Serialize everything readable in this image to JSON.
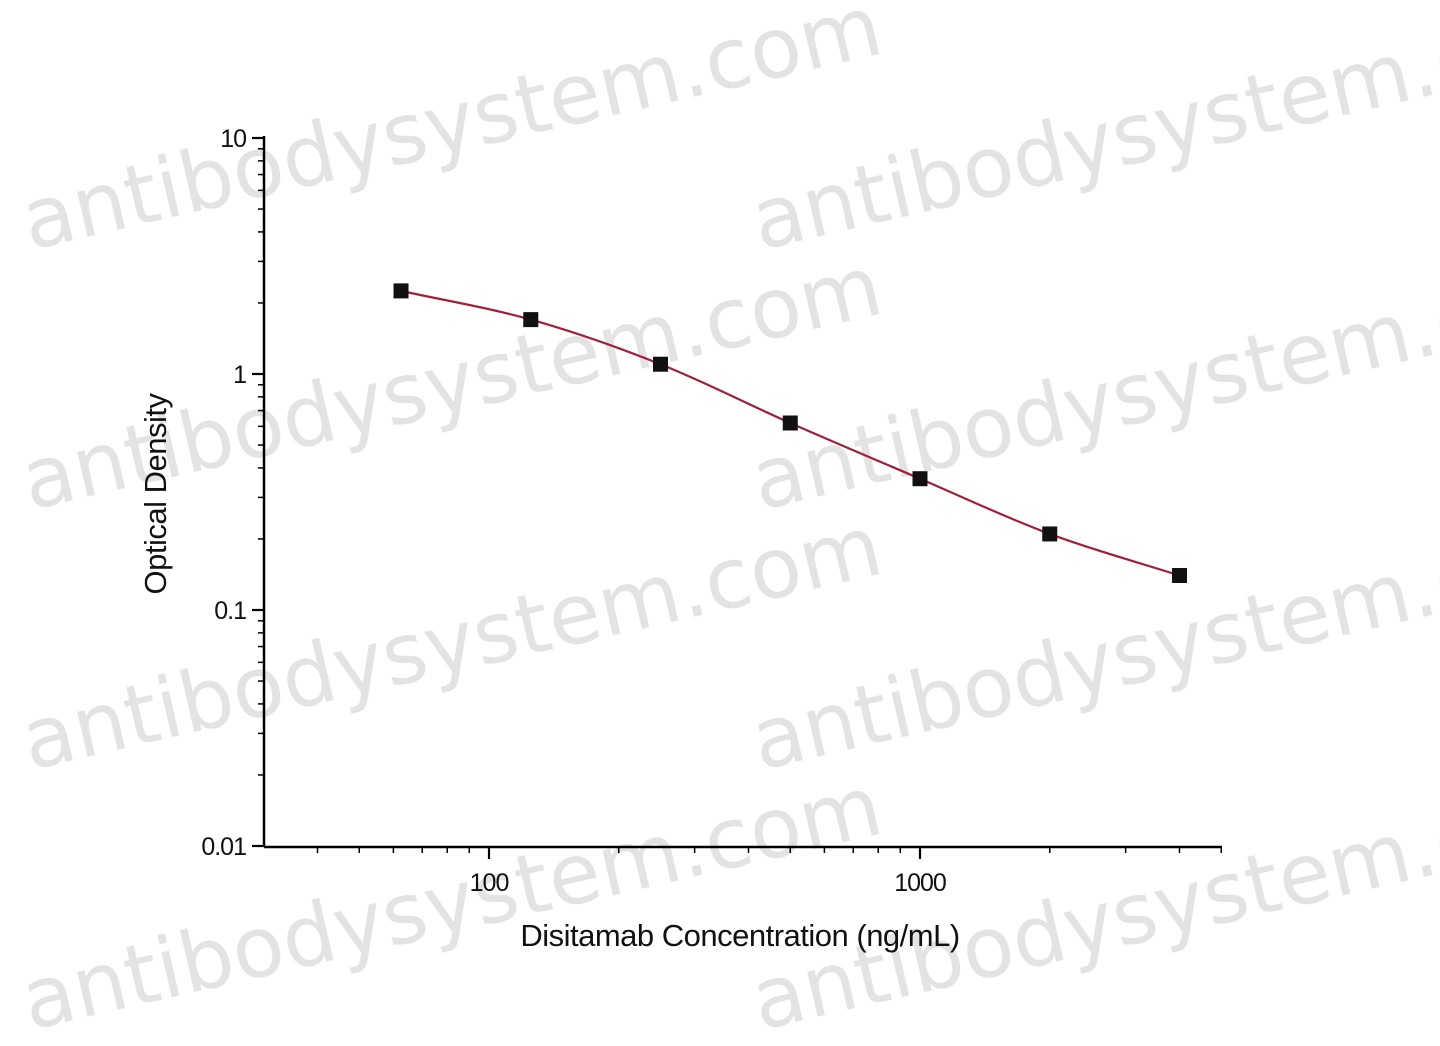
{
  "watermark_text": "antibodysystem.com",
  "colors": {
    "curve": "#a0203a",
    "marker": "#111111",
    "axis": "#000000",
    "watermark": "#9a9a9a"
  },
  "chart_data": {
    "type": "scatter",
    "title": "",
    "xlabel": "Disitamab Concentration (ng/mL)",
    "ylabel": "Optical Density",
    "x_scale": "log",
    "y_scale": "log",
    "xlim": [
      30,
      8000
    ],
    "ylim": [
      0.01,
      10
    ],
    "x_tick_labels": [
      {
        "value": 100,
        "label": "100"
      },
      {
        "value": 1000,
        "label": "1000"
      }
    ],
    "y_tick_labels": [
      {
        "value": 10,
        "label": "10"
      },
      {
        "value": 1,
        "label": "1"
      },
      {
        "value": 0.1,
        "label": "0.1"
      },
      {
        "value": 0.01,
        "label": "0.01"
      }
    ],
    "grid": false,
    "legend": "none",
    "series": [
      {
        "x": [
          62.5,
          125,
          250,
          500,
          1000,
          2000,
          4000
        ],
        "y": [
          2.25,
          1.7,
          1.1,
          0.62,
          0.36,
          0.21,
          0.14
        ]
      }
    ],
    "fit_curve": "smooth line through points"
  }
}
